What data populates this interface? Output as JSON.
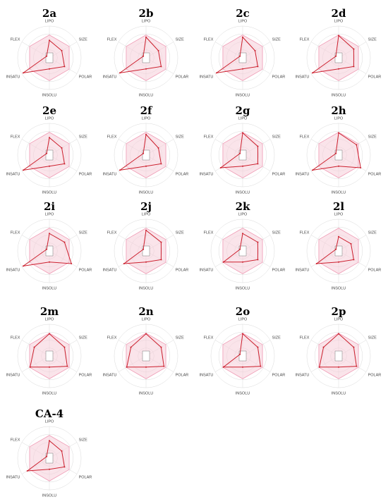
{
  "figure": {
    "axes": [
      "LIPO",
      "SIZE",
      "POLAR",
      "INSOLU",
      "INSATU",
      "FLEX"
    ],
    "colors": {
      "optimal_fill": "#f6cdd9",
      "optimal_stroke": "#ef9ab4",
      "data_line": "#cc1f2d",
      "grid": "#d9d9d9",
      "inner_square": "#777777"
    }
  },
  "chart_data": [
    {
      "type": "radar",
      "title": "2a",
      "axes": [
        "LIPO",
        "SIZE",
        "POLAR",
        "INSOLU",
        "INSATU",
        "FLEX"
      ],
      "values": [
        0.55,
        0.45,
        0.55,
        0.35,
        0.95,
        0.1
      ],
      "range": [
        0,
        1
      ]
    },
    {
      "type": "radar",
      "title": "2b",
      "axes": [
        "LIPO",
        "SIZE",
        "POLAR",
        "INSOLU",
        "INSATU",
        "FLEX"
      ],
      "values": [
        0.65,
        0.45,
        0.55,
        0.35,
        0.95,
        0.1
      ],
      "range": [
        0,
        1
      ]
    },
    {
      "type": "radar",
      "title": "2c",
      "axes": [
        "LIPO",
        "SIZE",
        "POLAR",
        "INSOLU",
        "INSATU",
        "FLEX"
      ],
      "values": [
        0.65,
        0.45,
        0.55,
        0.35,
        0.95,
        0.1
      ],
      "range": [
        0,
        1
      ]
    },
    {
      "type": "radar",
      "title": "2d",
      "axes": [
        "LIPO",
        "SIZE",
        "POLAR",
        "INSOLU",
        "INSATU",
        "FLEX"
      ],
      "values": [
        0.7,
        0.55,
        0.55,
        0.35,
        0.95,
        0.1
      ],
      "range": [
        0,
        1
      ]
    },
    {
      "type": "radar",
      "title": "2e",
      "axes": [
        "LIPO",
        "SIZE",
        "POLAR",
        "INSOLU",
        "INSATU",
        "FLEX"
      ],
      "values": [
        0.55,
        0.45,
        0.55,
        0.35,
        0.95,
        0.1
      ],
      "range": [
        0,
        1
      ]
    },
    {
      "type": "radar",
      "title": "2f",
      "axes": [
        "LIPO",
        "SIZE",
        "POLAR",
        "INSOLU",
        "INSATU",
        "FLEX"
      ],
      "values": [
        0.65,
        0.45,
        0.55,
        0.35,
        0.95,
        0.1
      ],
      "range": [
        0,
        1
      ]
    },
    {
      "type": "radar",
      "title": "2g",
      "axes": [
        "LIPO",
        "SIZE",
        "POLAR",
        "INSOLU",
        "INSATU",
        "FLEX"
      ],
      "values": [
        0.7,
        0.55,
        0.55,
        0.35,
        0.8,
        0.1
      ],
      "range": [
        0,
        1
      ]
    },
    {
      "type": "radar",
      "title": "2h",
      "axes": [
        "LIPO",
        "SIZE",
        "POLAR",
        "INSOLU",
        "INSATU",
        "FLEX"
      ],
      "values": [
        0.7,
        0.65,
        0.8,
        0.35,
        0.95,
        0.1
      ],
      "range": [
        0,
        1
      ]
    },
    {
      "type": "radar",
      "title": "2i",
      "axes": [
        "LIPO",
        "SIZE",
        "POLAR",
        "INSOLU",
        "INSATU",
        "FLEX"
      ],
      "values": [
        0.55,
        0.55,
        0.8,
        0.35,
        0.95,
        0.1
      ],
      "range": [
        0,
        1
      ]
    },
    {
      "type": "radar",
      "title": "2j",
      "axes": [
        "LIPO",
        "SIZE",
        "POLAR",
        "INSOLU",
        "INSATU",
        "FLEX"
      ],
      "values": [
        0.65,
        0.55,
        0.55,
        0.35,
        0.8,
        0.1
      ],
      "range": [
        0,
        1
      ]
    },
    {
      "type": "radar",
      "title": "2k",
      "axes": [
        "LIPO",
        "SIZE",
        "POLAR",
        "INSOLU",
        "INSATU",
        "FLEX"
      ],
      "values": [
        0.55,
        0.55,
        0.55,
        0.35,
        0.7,
        0.1
      ],
      "range": [
        0,
        1
      ]
    },
    {
      "type": "radar",
      "title": "2l",
      "axes": [
        "LIPO",
        "SIZE",
        "POLAR",
        "INSOLU",
        "INSATU",
        "FLEX"
      ],
      "values": [
        0.45,
        0.45,
        0.55,
        0.35,
        0.8,
        0.1
      ],
      "range": [
        0,
        1
      ]
    },
    {
      "type": "radar",
      "title": "2m",
      "axes": [
        "LIPO",
        "SIZE",
        "POLAR",
        "INSOLU",
        "INSATU",
        "FLEX"
      ],
      "values": [
        0.7,
        0.55,
        0.65,
        0.35,
        0.7,
        0.55
      ],
      "range": [
        0,
        1
      ]
    },
    {
      "type": "radar",
      "title": "2n",
      "axes": [
        "LIPO",
        "SIZE",
        "POLAR",
        "INSOLU",
        "INSATU",
        "FLEX"
      ],
      "values": [
        0.7,
        0.55,
        0.65,
        0.35,
        0.7,
        0.55
      ],
      "range": [
        0,
        1
      ]
    },
    {
      "type": "radar",
      "title": "2o",
      "axes": [
        "LIPO",
        "SIZE",
        "POLAR",
        "INSOLU",
        "INSATU",
        "FLEX"
      ],
      "values": [
        0.7,
        0.55,
        0.65,
        0.35,
        0.7,
        0.1
      ],
      "range": [
        0,
        1
      ]
    },
    {
      "type": "radar",
      "title": "2p",
      "axes": [
        "LIPO",
        "SIZE",
        "POLAR",
        "INSOLU",
        "INSATU",
        "FLEX"
      ],
      "values": [
        0.7,
        0.55,
        0.65,
        0.35,
        0.7,
        0.55
      ],
      "range": [
        0,
        1
      ]
    },
    {
      "type": "radar",
      "title": "CA-4",
      "axes": [
        "LIPO",
        "SIZE",
        "POLAR",
        "INSOLU",
        "INSATU",
        "FLEX"
      ],
      "values": [
        0.55,
        0.45,
        0.55,
        0.35,
        0.8,
        0.1
      ],
      "range": [
        0,
        1
      ]
    }
  ]
}
